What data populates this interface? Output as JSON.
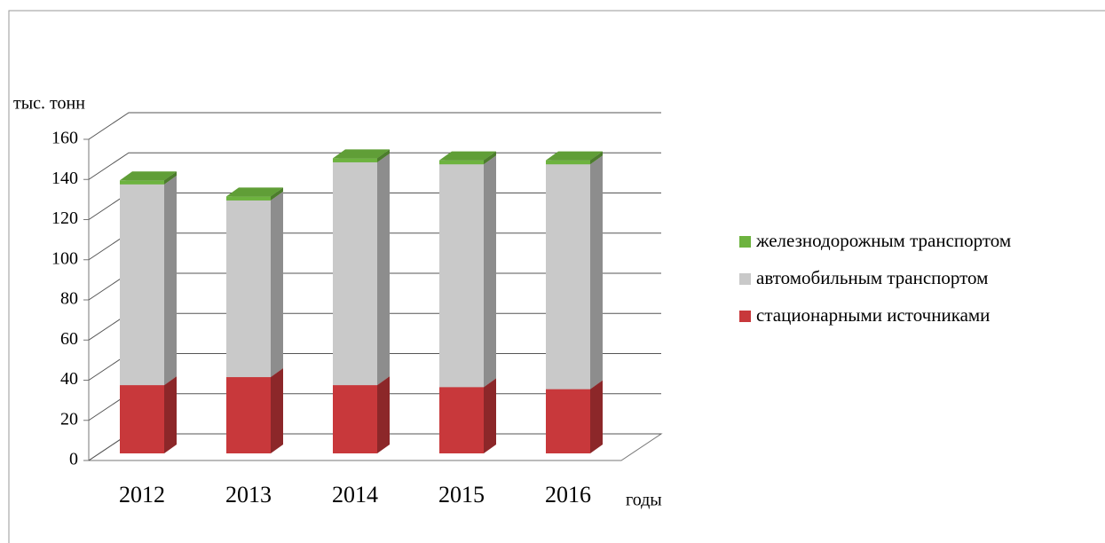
{
  "chart_data": {
    "type": "bar3d-stacked",
    "y_label": "тыс. тонн",
    "x_label": "годы",
    "categories": [
      "2012",
      "2013",
      "2014",
      "2015",
      "2016"
    ],
    "series": [
      {
        "name": "стационарными источниками",
        "color": "#c8383b",
        "values": [
          34,
          38,
          34,
          33,
          32
        ]
      },
      {
        "name": "автомобильным транспортом",
        "color": "#c9c9c9",
        "values": [
          100,
          88,
          111,
          111,
          112
        ]
      },
      {
        "name": "железнодорожным транспортом",
        "color": "#6db33f",
        "values": [
          2,
          2,
          2,
          2,
          2
        ]
      }
    ],
    "ylim": [
      0,
      160
    ],
    "yticks": [
      0,
      20,
      40,
      60,
      80,
      100,
      120,
      140,
      160
    ],
    "grid": true
  }
}
